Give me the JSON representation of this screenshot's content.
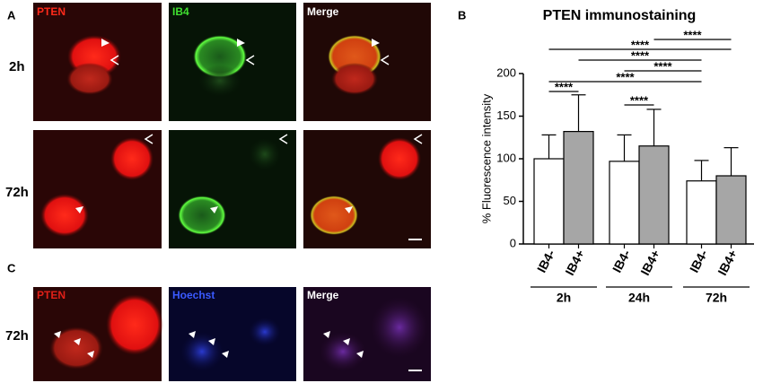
{
  "panels": {
    "a": {
      "label": "A",
      "rows": [
        "2h",
        "72h"
      ],
      "channels": [
        "PTEN",
        "IB4",
        "Merge"
      ]
    },
    "c": {
      "label": "C",
      "rows": [
        "72h"
      ],
      "channels": [
        "PTEN",
        "Hoechst",
        "Merge"
      ]
    },
    "b": {
      "label": "B"
    }
  },
  "chart_data": {
    "type": "bar",
    "title": "PTEN immunostaining",
    "y_label": "% Fluorescence intensity",
    "categories": [
      "IB4-",
      "IB4+",
      "IB4-",
      "IB4+",
      "IB4-",
      "IB4+"
    ],
    "groups": [
      "2h",
      "24h",
      "72h"
    ],
    "values": [
      100,
      132,
      97,
      115,
      74,
      80
    ],
    "errors": [
      28,
      43,
      31,
      43,
      24,
      33
    ],
    "colors": [
      "#ffffff",
      "#a6a6a6",
      "#ffffff",
      "#a6a6a6",
      "#ffffff",
      "#a6a6a6"
    ],
    "ylim": [
      0,
      200
    ],
    "yticks": [
      0,
      50,
      100,
      150,
      200
    ],
    "comparisons": [
      {
        "bars": [
          3,
          5
        ],
        "label": "****"
      },
      {
        "bars": [
          0,
          5
        ],
        "label": "****"
      },
      {
        "bars": [
          1,
          4
        ],
        "label": "****"
      },
      {
        "bars": [
          2,
          4
        ],
        "label": "****"
      },
      {
        "bars": [
          0,
          4
        ],
        "label": "****"
      },
      {
        "bars": [
          0,
          1
        ],
        "label": "****"
      },
      {
        "bars": [
          2,
          3
        ],
        "label": "****"
      }
    ]
  }
}
